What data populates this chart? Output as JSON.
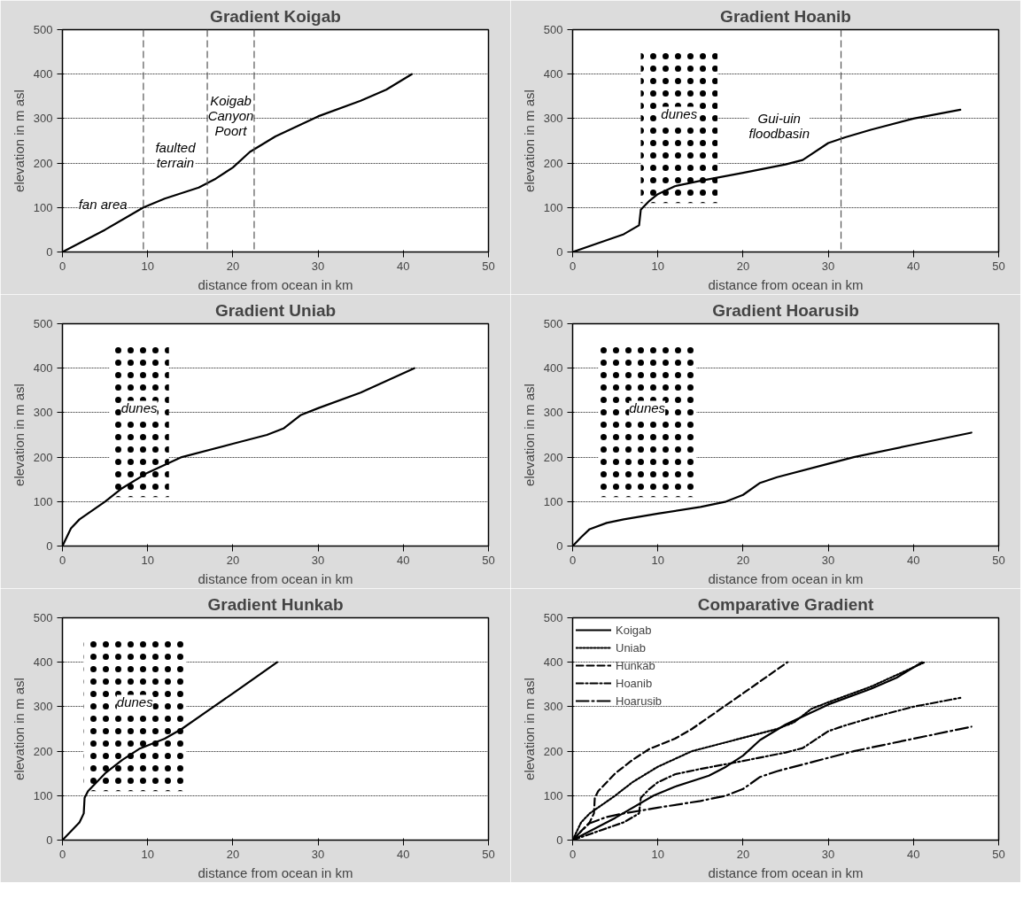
{
  "chart_data": [
    {
      "type": "line",
      "title": "Gradient Koigab",
      "xlabel": "distance from ocean in km",
      "ylabel": "elevation in m asl",
      "xlim": [
        0,
        50
      ],
      "ylim": [
        0,
        500
      ],
      "xticks": [
        0,
        10,
        20,
        30,
        40,
        50
      ],
      "yticks": [
        0,
        100,
        200,
        300,
        400,
        500
      ],
      "grid": "y",
      "legend": false,
      "series": [
        {
          "color": "#000000",
          "x": [
            0,
            5,
            9.5,
            12,
            16,
            18,
            20,
            22,
            25,
            30,
            35,
            38,
            41
          ],
          "values": [
            0,
            50,
            100,
            120,
            145,
            165,
            190,
            225,
            260,
            305,
            340,
            365,
            400
          ]
        }
      ],
      "ref_lines": [
        {
          "axis": "x",
          "value": 9.5,
          "line_style": "dashed"
        },
        {
          "axis": "x",
          "value": 17,
          "line_style": "dashed"
        },
        {
          "axis": "x",
          "value": 22.5,
          "line_style": "dashed"
        }
      ],
      "annotations": [
        "fan area",
        "faulted\nterrain",
        "Koigab\nCanyon\nPoort"
      ]
    },
    {
      "type": "line",
      "title": "Gradient Hoanib",
      "xlabel": "distance from ocean in km",
      "ylabel": "elevation in m asl",
      "xlim": [
        0,
        50
      ],
      "ylim": [
        0,
        500
      ],
      "xticks": [
        0,
        10,
        20,
        30,
        40,
        50
      ],
      "yticks": [
        0,
        100,
        200,
        300,
        400,
        500
      ],
      "grid": "y",
      "legend": false,
      "series": [
        {
          "color": "#000000",
          "x": [
            0,
            3,
            6,
            7.8,
            8,
            9,
            10,
            12,
            15,
            20,
            25,
            27,
            30,
            32,
            35,
            40,
            45.5
          ],
          "values": [
            0,
            20,
            40,
            60,
            95,
            115,
            130,
            148,
            160,
            178,
            197,
            207,
            245,
            258,
            275,
            300,
            320
          ]
        }
      ],
      "bands": [
        {
          "axis": "x",
          "from": 8,
          "to": 17,
          "label": "dunes",
          "color": "#000000"
        }
      ],
      "ref_lines": [
        {
          "axis": "x",
          "value": 31.5,
          "line_style": "dashed"
        }
      ],
      "annotations": [
        "Gui-uin\nfloodbasin"
      ]
    },
    {
      "type": "line",
      "title": "Gradient Uniab",
      "xlabel": "distance from ocean in km",
      "ylabel": "elevation in m asl",
      "xlim": [
        0,
        50
      ],
      "ylim": [
        0,
        500
      ],
      "xticks": [
        0,
        10,
        20,
        30,
        40,
        50
      ],
      "yticks": [
        0,
        100,
        200,
        300,
        400,
        500
      ],
      "grid": "y",
      "legend": false,
      "series": [
        {
          "color": "#000000",
          "x": [
            0,
            1,
            2,
            5,
            7,
            10,
            14,
            20,
            24,
            26,
            28,
            30,
            35,
            41.3
          ],
          "values": [
            0,
            40,
            60,
            100,
            130,
            165,
            200,
            230,
            250,
            265,
            295,
            310,
            345,
            400
          ]
        }
      ],
      "bands": [
        {
          "axis": "x",
          "from": 5.5,
          "to": 12.5,
          "label": "dunes",
          "color": "#000000"
        }
      ]
    },
    {
      "type": "line",
      "title": "Gradient Hoarusib",
      "xlabel": "distance from ocean in km",
      "ylabel": "elevation in m asl",
      "xlim": [
        0,
        50
      ],
      "ylim": [
        0,
        500
      ],
      "xticks": [
        0,
        10,
        20,
        30,
        40,
        50
      ],
      "yticks": [
        0,
        100,
        200,
        300,
        400,
        500
      ],
      "grid": "y",
      "legend": false,
      "series": [
        {
          "color": "#000000",
          "x": [
            0,
            1,
            2,
            4,
            6,
            10,
            15,
            18,
            20,
            22,
            24,
            30,
            33,
            40,
            46.8
          ],
          "values": [
            0,
            20,
            38,
            52,
            60,
            73,
            88,
            100,
            115,
            142,
            155,
            185,
            200,
            228,
            255
          ]
        }
      ],
      "bands": [
        {
          "axis": "x",
          "from": 3,
          "to": 14.5,
          "label": "dunes",
          "color": "#000000"
        }
      ]
    },
    {
      "type": "line",
      "title": "Gradient Hunkab",
      "xlabel": "distance from ocean in km",
      "ylabel": "elevation in m asl",
      "xlim": [
        0,
        50
      ],
      "ylim": [
        0,
        500
      ],
      "xticks": [
        0,
        10,
        20,
        30,
        40,
        50
      ],
      "yticks": [
        0,
        100,
        200,
        300,
        400,
        500
      ],
      "grid": "y",
      "legend": false,
      "series": [
        {
          "color": "#000000",
          "x": [
            0,
            2,
            2.5,
            2.6,
            3,
            5,
            7,
            9,
            12,
            14,
            17,
            20,
            25.2
          ],
          "values": [
            0,
            40,
            60,
            95,
            110,
            150,
            180,
            205,
            228,
            250,
            290,
            330,
            400
          ]
        }
      ],
      "bands": [
        {
          "axis": "x",
          "from": 2.5,
          "to": 14.5,
          "label": "dunes",
          "color": "#000000"
        }
      ]
    },
    {
      "type": "line",
      "title": "Comparative Gradient",
      "xlabel": "distance from ocean in km",
      "ylabel": "elevation in m asl",
      "xlim": [
        0,
        50
      ],
      "ylim": [
        0,
        500
      ],
      "xticks": [
        0,
        10,
        20,
        30,
        40,
        50
      ],
      "yticks": [
        0,
        100,
        200,
        300,
        400,
        500
      ],
      "grid": "y",
      "legend": "top left",
      "series": [
        {
          "name": "Koigab",
          "color": "#000000",
          "line_style": "solid",
          "x": [
            0,
            5,
            9.5,
            12,
            16,
            18,
            20,
            22,
            25,
            30,
            35,
            38,
            41
          ],
          "values": [
            0,
            50,
            100,
            120,
            145,
            165,
            190,
            225,
            260,
            305,
            340,
            365,
            400
          ]
        },
        {
          "name": "Uniab",
          "color": "#000000",
          "line_style": "dotted",
          "x": [
            0,
            1,
            2,
            5,
            7,
            10,
            14,
            20,
            24,
            26,
            28,
            30,
            35,
            41.3
          ],
          "values": [
            0,
            40,
            60,
            100,
            130,
            165,
            200,
            230,
            250,
            265,
            295,
            310,
            345,
            400
          ]
        },
        {
          "name": "Hunkab",
          "color": "#000000",
          "line_style": "dashed",
          "x": [
            0,
            2,
            2.5,
            2.6,
            3,
            5,
            7,
            9,
            12,
            14,
            17,
            20,
            25.2
          ],
          "values": [
            0,
            40,
            60,
            95,
            110,
            150,
            180,
            205,
            228,
            250,
            290,
            330,
            400
          ]
        },
        {
          "name": "Hoanib",
          "color": "#000000",
          "line_style": "dashdot",
          "x": [
            0,
            3,
            6,
            7.8,
            8,
            9,
            10,
            12,
            15,
            20,
            25,
            27,
            30,
            32,
            35,
            40,
            45.5
          ],
          "values": [
            0,
            20,
            40,
            60,
            95,
            115,
            130,
            148,
            160,
            178,
            197,
            207,
            245,
            258,
            275,
            300,
            320
          ]
        },
        {
          "name": "Hoarusib",
          "color": "#000000",
          "line_style": "longdashdot",
          "x": [
            0,
            1,
            2,
            4,
            6,
            10,
            15,
            18,
            20,
            22,
            24,
            30,
            33,
            40,
            46.8
          ],
          "values": [
            0,
            20,
            38,
            52,
            60,
            73,
            88,
            100,
            115,
            142,
            155,
            185,
            200,
            228,
            255
          ]
        }
      ]
    }
  ]
}
